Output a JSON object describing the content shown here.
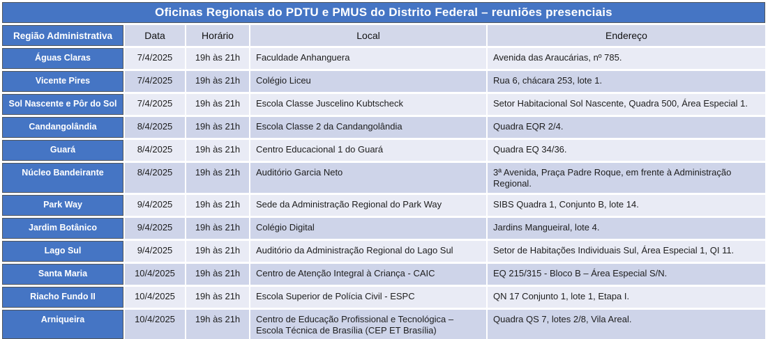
{
  "title": "Oficinas Regionais do PDTU e PMUS do Distrito Federal – reuniões presenciais",
  "columns": [
    "Região Administrativa",
    "Data",
    "Horário",
    "Local",
    "Endereço"
  ],
  "rows": [
    {
      "regiao": "Águas Claras",
      "data": "7/4/2025",
      "horario": "19h às 21h",
      "local": "Faculdade Anhanguera",
      "endereco": "Avenida das Araucárias, nº 785."
    },
    {
      "regiao": "Vicente Pires",
      "data": "7/4/2025",
      "horario": "19h às 21h",
      "local": "Colégio Liceu",
      "endereco": "Rua 6, chácara 253, lote 1."
    },
    {
      "regiao": "Sol Nascente e Pôr do Sol",
      "data": "7/4/2025",
      "horario": "19h às 21h",
      "local": "Escola Classe Juscelino Kubtscheck",
      "endereco": "Setor Habitacional Sol Nascente, Quadra 500, Área Especial 1."
    },
    {
      "regiao": "Candangolândia",
      "data": "8/4/2025",
      "horario": "19h às 21h",
      "local": "Escola Classe 2 da Candangolândia",
      "endereco": "Quadra EQR 2/4."
    },
    {
      "regiao": "Guará",
      "data": "8/4/2025",
      "horario": "19h às 21h",
      "local": "Centro Educacional 1 do Guará",
      "endereco": "Quadra EQ 34/36."
    },
    {
      "regiao": "Núcleo Bandeirante",
      "data": "8/4/2025",
      "horario": "19h às 21h",
      "local": "Auditório Garcia Neto",
      "endereco": "3ª Avenida, Praça Padre Roque, em frente à Administração Regional."
    },
    {
      "regiao": "Park Way",
      "data": "9/4/2025",
      "horario": "19h às 21h",
      "local": "Sede da Administração Regional do Park Way",
      "endereco": "SIBS Quadra 1, Conjunto B, lote 14."
    },
    {
      "regiao": "Jardim Botânico",
      "data": "9/4/2025",
      "horario": "19h às 21h",
      "local": "Colégio Digital",
      "endereco": "Jardins Mangueiral, lote 4."
    },
    {
      "regiao": "Lago Sul",
      "data": "9/4/2025",
      "horario": "19h às 21h",
      "local": "Auditório da Administração Regional do Lago Sul",
      "endereco": "Setor de Habitações Individuais Sul, Área Especial 1, QI 11."
    },
    {
      "regiao": "Santa Maria",
      "data": "10/4/2025",
      "horario": "19h às 21h",
      "local": "Centro de Atenção Integral à Criança - CAIC",
      "endereco": "EQ 215/315 - Bloco B – Área Especial S/N."
    },
    {
      "regiao": "Riacho Fundo II",
      "data": "10/4/2025",
      "horario": "19h às 21h",
      "local": "Escola Superior de Polícia Civil - ESPC",
      "endereco": "QN 17 Conjunto 1, lote 1, Etapa I."
    },
    {
      "regiao": "Arniqueira",
      "data": "10/4/2025",
      "horario": "19h às 21h",
      "local": "Centro de Educação Profissional e Tecnológica – Escola Técnica de Brasília (CEP ET Brasília)",
      "endereco": "Quadra QS 7, lotes 2/8, Vila Areal."
    }
  ],
  "colors": {
    "accent_blue": "#4575C4",
    "row_light": "#E9EBF5",
    "row_dark": "#CED4E9",
    "header_band": "#D3D8EA",
    "cell_border_dark": "#51565c",
    "title_text": "#ffffff",
    "body_text": "#1d1d1d"
  }
}
